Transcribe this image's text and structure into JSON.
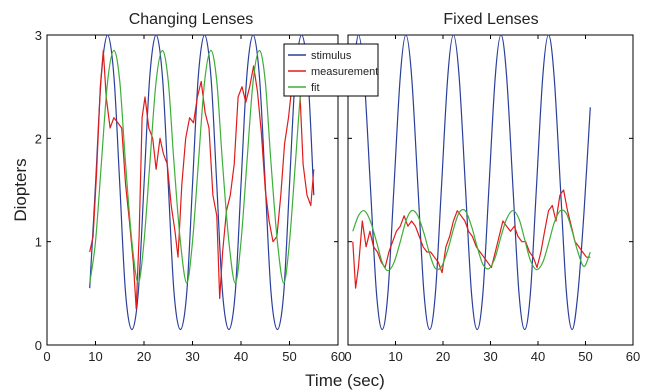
{
  "figure": {
    "ylabel": "Diopters",
    "xlabel": "Time (sec)"
  },
  "legend": {
    "entries": [
      "stimulus",
      "measurement",
      "fit"
    ]
  },
  "colors": {
    "stimulus": "#2a3f9a",
    "measurement": "#e01b1b",
    "fit": "#3fae3a"
  },
  "chart_data": [
    {
      "type": "line",
      "title": "Changing Lenses",
      "xlim": [
        0,
        60
      ],
      "ylim": [
        0,
        3
      ],
      "xticks": [
        0,
        10,
        20,
        30,
        40,
        50,
        60
      ],
      "yticks": [
        0,
        1,
        2,
        3
      ],
      "ytick_labels": [
        "0",
        "1",
        "2",
        "3"
      ],
      "series": [
        {
          "name": "stimulus",
          "x": [
            8.8,
            10.0,
            11.2,
            12.5,
            13.8,
            15.0,
            16.2,
            17.5,
            18.8,
            20.0,
            21.2,
            22.5,
            23.8,
            25.0,
            26.2,
            27.5,
            28.8,
            30.0,
            31.2,
            32.5,
            33.8,
            35.0,
            36.2,
            37.5,
            38.8,
            40.0,
            41.2,
            42.5,
            43.8,
            45.0,
            46.2,
            47.5,
            48.8,
            50.0,
            51.2,
            52.5,
            53.8,
            55.0
          ],
          "y": [
            0.55,
            1.55,
            2.6,
            3.0,
            2.6,
            1.55,
            0.5,
            0.15,
            0.5,
            1.55,
            2.6,
            3.0,
            2.6,
            1.55,
            0.5,
            0.15,
            0.5,
            1.55,
            2.6,
            3.0,
            2.6,
            1.55,
            0.5,
            0.15,
            0.5,
            1.55,
            2.6,
            3.0,
            2.6,
            1.55,
            0.5,
            0.15,
            0.5,
            1.55,
            2.6,
            3.0,
            2.6,
            1.45
          ]
        },
        {
          "name": "measurement",
          "x": [
            8.8,
            9.5,
            10.2,
            11.0,
            11.6,
            12.2,
            13.0,
            13.8,
            14.6,
            15.4,
            16.2,
            17.0,
            17.8,
            18.4,
            19.0,
            19.6,
            20.2,
            21.0,
            21.8,
            22.5,
            23.3,
            24.0,
            24.8,
            25.6,
            26.4,
            27.0,
            27.8,
            28.6,
            29.4,
            30.2,
            31.0,
            31.8,
            32.6,
            33.4,
            34.2,
            35.0,
            35.6,
            36.2,
            37.0,
            37.8,
            38.6,
            39.4,
            40.2,
            41.0,
            41.8,
            42.6,
            43.4,
            44.2,
            45.0,
            45.8,
            46.6,
            47.4,
            48.2,
            49.0,
            49.8,
            50.6,
            51.4,
            52.0,
            52.8,
            53.6,
            54.4,
            55.0
          ],
          "y": [
            0.9,
            1.05,
            1.65,
            2.5,
            2.85,
            2.4,
            2.1,
            2.2,
            2.15,
            2.1,
            1.55,
            1.2,
            0.8,
            0.35,
            1.05,
            2.2,
            2.4,
            2.1,
            2.0,
            1.7,
            2.0,
            1.85,
            1.75,
            1.35,
            1.1,
            0.85,
            1.55,
            2.0,
            2.2,
            2.15,
            2.4,
            2.55,
            2.25,
            2.1,
            1.45,
            1.25,
            0.45,
            0.9,
            1.3,
            1.45,
            1.75,
            2.4,
            2.5,
            2.35,
            2.5,
            2.7,
            2.45,
            2.05,
            1.5,
            1.2,
            1.0,
            1.05,
            1.45,
            1.95,
            2.2,
            2.55,
            2.9,
            2.6,
            1.75,
            1.45,
            1.35,
            1.7
          ]
        },
        {
          "name": "fit",
          "x": [
            8.8,
            10.0,
            11.2,
            12.5,
            13.8,
            15.0,
            16.2,
            17.5,
            18.8,
            20.0,
            21.2,
            22.5,
            23.8,
            25.0,
            26.2,
            27.5,
            28.8,
            30.0,
            31.2,
            32.5,
            33.8,
            35.0,
            36.2,
            37.5,
            38.8,
            40.0,
            41.2,
            42.5,
            43.8,
            45.0,
            46.2,
            47.5,
            48.8,
            50.0,
            51.2,
            52.5,
            53.8,
            55.0
          ],
          "y": [
            0.6,
            1.0,
            1.75,
            2.55,
            2.85,
            2.55,
            1.75,
            1.0,
            0.6,
            1.0,
            1.75,
            2.55,
            2.85,
            2.55,
            1.75,
            1.0,
            0.6,
            1.0,
            1.75,
            2.55,
            2.85,
            2.55,
            1.75,
            1.0,
            0.6,
            1.0,
            1.75,
            2.55,
            2.85,
            2.55,
            1.75,
            1.0,
            0.6,
            1.0,
            1.75,
            2.55,
            2.85,
            2.55
          ]
        }
      ]
    },
    {
      "type": "line",
      "title": "Fixed Lenses",
      "xlim": [
        0,
        60
      ],
      "ylim": [
        0,
        3
      ],
      "xticks": [
        0,
        10,
        20,
        30,
        40,
        50,
        60
      ],
      "yticks": [
        0,
        1,
        2,
        3
      ],
      "ytick_labels": [
        "",
        "",
        "",
        ""
      ],
      "series": [
        {
          "name": "stimulus",
          "x": [
            1.0,
            2.2,
            3.4,
            4.7,
            6.0,
            7.2,
            8.4,
            9.7,
            11.0,
            12.2,
            13.4,
            14.7,
            16.0,
            17.2,
            18.4,
            19.7,
            21.0,
            22.2,
            23.4,
            24.7,
            26.0,
            27.2,
            28.4,
            29.7,
            31.0,
            32.2,
            33.4,
            34.7,
            36.0,
            37.2,
            38.4,
            39.7,
            41.0,
            42.2,
            43.4,
            44.7,
            46.0,
            47.2,
            48.4,
            49.7,
            51.0
          ],
          "y": [
            2.6,
            3.0,
            2.6,
            1.55,
            0.5,
            0.15,
            0.5,
            1.55,
            2.6,
            3.0,
            2.6,
            1.55,
            0.5,
            0.15,
            0.5,
            1.55,
            2.6,
            3.0,
            2.6,
            1.55,
            0.5,
            0.15,
            0.5,
            1.55,
            2.6,
            3.0,
            2.6,
            1.55,
            0.5,
            0.15,
            0.5,
            1.55,
            2.6,
            3.0,
            2.6,
            1.55,
            0.5,
            0.15,
            0.5,
            1.3,
            2.3
          ]
        },
        {
          "name": "measurement",
          "x": [
            1.0,
            1.6,
            2.2,
            3.0,
            3.8,
            4.6,
            5.4,
            6.2,
            7.0,
            7.8,
            8.6,
            9.4,
            10.2,
            11.0,
            11.8,
            12.6,
            13.4,
            14.2,
            15.0,
            15.8,
            16.6,
            17.4,
            18.2,
            19.0,
            19.8,
            20.6,
            21.4,
            22.2,
            23.0,
            23.8,
            24.6,
            25.4,
            26.2,
            27.0,
            27.8,
            28.6,
            29.4,
            30.2,
            31.0,
            31.8,
            32.6,
            33.4,
            34.2,
            35.0,
            35.8,
            36.6,
            37.4,
            38.2,
            39.0,
            39.8,
            40.6,
            41.4,
            42.2,
            43.0,
            43.8,
            44.6,
            45.4,
            46.2,
            47.0,
            47.8,
            48.6,
            49.4,
            50.2,
            51.0
          ],
          "y": [
            1.0,
            0.55,
            0.75,
            1.2,
            0.95,
            1.1,
            0.95,
            0.9,
            0.8,
            0.75,
            0.9,
            1.0,
            1.1,
            1.15,
            1.25,
            1.15,
            1.2,
            1.15,
            1.05,
            0.95,
            0.9,
            0.9,
            0.85,
            0.8,
            0.7,
            0.95,
            1.05,
            1.2,
            1.3,
            1.25,
            1.2,
            1.1,
            1.05,
            0.95,
            0.9,
            0.85,
            0.8,
            0.75,
            0.9,
            1.05,
            1.2,
            1.15,
            1.1,
            1.15,
            1.05,
            1.0,
            1.0,
            0.9,
            0.85,
            0.75,
            0.9,
            1.1,
            1.3,
            1.35,
            1.2,
            1.45,
            1.5,
            1.3,
            1.15,
            1.0,
            0.95,
            0.9,
            0.85,
            0.85
          ]
        },
        {
          "name": "fit",
          "x": [
            1.0,
            2.2,
            3.4,
            4.7,
            6.0,
            7.2,
            8.4,
            9.7,
            11.0,
            12.2,
            13.4,
            14.7,
            16.0,
            17.2,
            18.4,
            19.7,
            21.0,
            22.2,
            23.4,
            24.7,
            26.0,
            27.2,
            28.4,
            29.7,
            31.0,
            32.2,
            33.4,
            34.7,
            36.0,
            37.2,
            38.4,
            39.7,
            41.0,
            42.2,
            43.4,
            44.7,
            46.0,
            47.2,
            48.4,
            49.7,
            51.0
          ],
          "y": [
            1.1,
            1.25,
            1.3,
            1.2,
            1.0,
            0.8,
            0.72,
            0.8,
            1.0,
            1.2,
            1.3,
            1.25,
            1.08,
            0.88,
            0.74,
            0.76,
            0.92,
            1.12,
            1.28,
            1.3,
            1.15,
            0.95,
            0.78,
            0.74,
            0.85,
            1.05,
            1.22,
            1.3,
            1.22,
            1.02,
            0.82,
            0.73,
            0.8,
            0.98,
            1.18,
            1.3,
            1.27,
            1.1,
            0.9,
            0.76,
            0.9
          ]
        }
      ]
    }
  ]
}
